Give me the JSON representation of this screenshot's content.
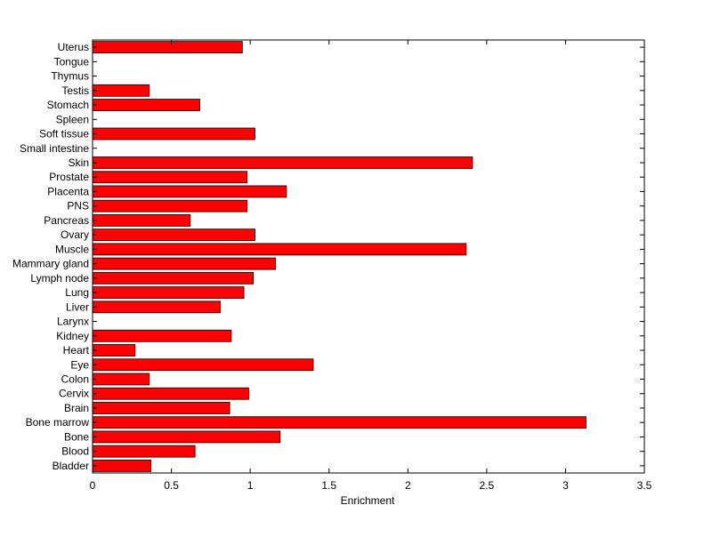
{
  "chart_data": {
    "type": "bar",
    "orientation": "horizontal",
    "title": "",
    "xlabel": "Enrichment",
    "ylabel": "",
    "xlim": [
      0,
      3.5
    ],
    "xticks": [
      0,
      0.5,
      1,
      1.5,
      2,
      2.5,
      3,
      3.5
    ],
    "xtick_labels": [
      "0",
      "0.5",
      "1",
      "1.5",
      "2",
      "2.5",
      "3",
      "3.5"
    ],
    "grid": false,
    "legend": "none",
    "bar_color": "#ff0000",
    "categories": [
      "Bladder",
      "Blood",
      "Bone",
      "Bone marrow",
      "Brain",
      "Cervix",
      "Colon",
      "Eye",
      "Heart",
      "Kidney",
      "Larynx",
      "Liver",
      "Lung",
      "Lymph node",
      "Mammary gland",
      "Muscle",
      "Ovary",
      "Pancreas",
      "PNS",
      "Placenta",
      "Prostate",
      "Skin",
      "Small intestine",
      "Soft tissue",
      "Spleen",
      "Stomach",
      "Testis",
      "Thymus",
      "Tongue",
      "Uterus"
    ],
    "values": [
      0.37,
      0.65,
      1.19,
      3.13,
      0.87,
      0.99,
      0.36,
      1.4,
      0.27,
      0.88,
      0,
      0.81,
      0.96,
      1.02,
      1.16,
      2.37,
      1.03,
      0.62,
      0.98,
      1.23,
      0.98,
      2.41,
      0,
      1.03,
      0,
      0.68,
      0.36,
      0,
      0,
      0.95
    ]
  }
}
